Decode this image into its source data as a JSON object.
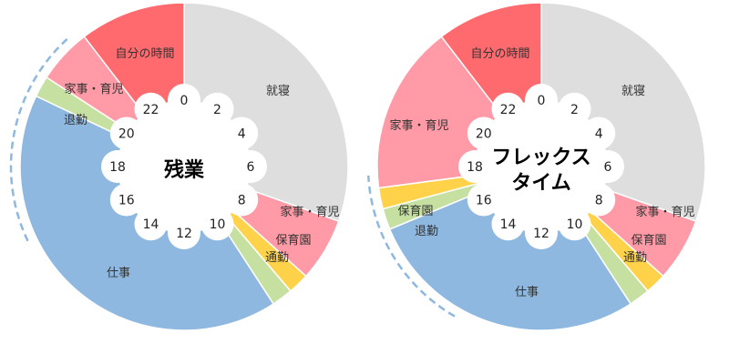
{
  "chart_data": [
    {
      "type": "pie",
      "title": "残業",
      "unit_note": "hours of a 24-hour day",
      "hour_ticks": [
        "0",
        "2",
        "4",
        "6",
        "8",
        "10",
        "12",
        "14",
        "16",
        "18",
        "20",
        "22"
      ],
      "slices": [
        {
          "label": "就寝",
          "start": 0,
          "end": 7.3,
          "color": "#dedede"
        },
        {
          "label": "家事・育児",
          "start": 7.3,
          "end": 8.8,
          "color": "#ff9aa6"
        },
        {
          "label": "保育園",
          "start": 8.8,
          "end": 9.3,
          "color": "#ffd24a"
        },
        {
          "label": "通勤",
          "start": 9.3,
          "end": 9.8,
          "color": "#c5e0a0"
        },
        {
          "label": "仕事",
          "start": 9.8,
          "end": 19.7,
          "color": "#8eb8e0"
        },
        {
          "label": "退勤",
          "start": 19.7,
          "end": 20.2,
          "color": "#c5e0a0"
        },
        {
          "label": "家事・育児",
          "start": 20.2,
          "end": 21.5,
          "color": "#ff9aa6"
        },
        {
          "label": "自分の時間",
          "start": 21.5,
          "end": 24,
          "color": "#ff6a6e"
        }
      ],
      "dashed_arc": {
        "start": 16.3,
        "end": 21.2
      }
    },
    {
      "type": "pie",
      "title": "フレックス\nタイム",
      "unit_note": "hours of a 24-hour day",
      "hour_ticks": [
        "0",
        "2",
        "4",
        "6",
        "8",
        "10",
        "12",
        "14",
        "16",
        "18",
        "20",
        "22"
      ],
      "slices": [
        {
          "label": "就寝",
          "start": 0,
          "end": 7.3,
          "color": "#dedede"
        },
        {
          "label": "家事・育児",
          "start": 7.3,
          "end": 8.8,
          "color": "#ff9aa6"
        },
        {
          "label": "保育園",
          "start": 8.8,
          "end": 9.3,
          "color": "#ffd24a"
        },
        {
          "label": "通勤",
          "start": 9.3,
          "end": 9.8,
          "color": "#c5e0a0"
        },
        {
          "label": "仕事",
          "start": 9.8,
          "end": 16.5,
          "color": "#8eb8e0"
        },
        {
          "label": "退勤",
          "start": 16.5,
          "end": 17.0,
          "color": "#c5e0a0"
        },
        {
          "label": "保育園",
          "start": 17.0,
          "end": 17.5,
          "color": "#ffd24a"
        },
        {
          "label": "家事・育児",
          "start": 17.5,
          "end": 21.5,
          "color": "#ff9aa6"
        },
        {
          "label": "自分の時間",
          "start": 21.5,
          "end": 24,
          "color": "#ff6a6e"
        }
      ],
      "dashed_arc": {
        "start": 14.0,
        "end": 17.8
      }
    }
  ]
}
